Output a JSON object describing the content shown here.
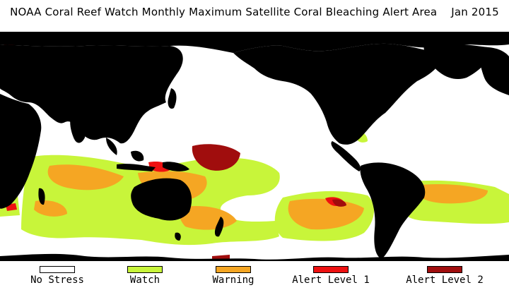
{
  "title": "NOAA Coral Reef Watch Monthly Maximum Satellite Coral Bleaching Alert Area    Jan 2015",
  "legend": [
    {
      "label": "No Stress",
      "color": "#ffffff"
    },
    {
      "label": "Watch",
      "color": "#c8f53a"
    },
    {
      "label": "Warning",
      "color": "#f5a623"
    },
    {
      "label": "Alert Level 1",
      "color": "#ee1111"
    },
    {
      "label": "Alert Level 2",
      "color": "#a00d0d"
    }
  ],
  "colors": {
    "land": "#000000",
    "ocean": "#ffffff"
  }
}
